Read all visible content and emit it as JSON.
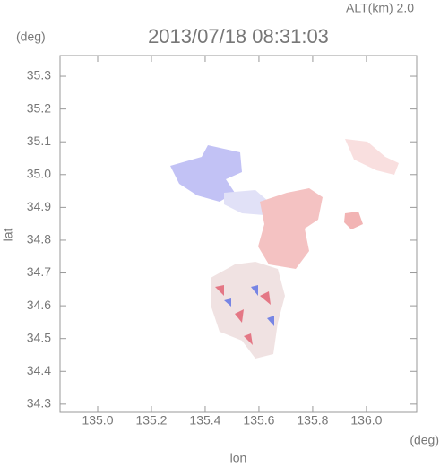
{
  "chart_data": {
    "type": "map",
    "title": "2013/07/18 08:31:03",
    "subtitle": "ALT(km) 2.0",
    "x_label": "lon",
    "x_unit": "(deg)",
    "y_label": "lat",
    "y_unit": "(deg)",
    "xlim": [
      134.86,
      136.187
    ],
    "ylim": [
      34.275,
      35.363
    ],
    "xticks": [
      {
        "value": 135.0,
        "label": "135.0"
      },
      135.2,
      135.4,
      135.6,
      135.8,
      {
        "value": 136.0,
        "label": "136.0"
      }
    ],
    "yticks": [
      34.3,
      34.4,
      34.5,
      34.6,
      34.7,
      34.8,
      34.9,
      {
        "value": 35.0,
        "label": "35.0"
      },
      35.1,
      35.2,
      35.3
    ]
  }
}
